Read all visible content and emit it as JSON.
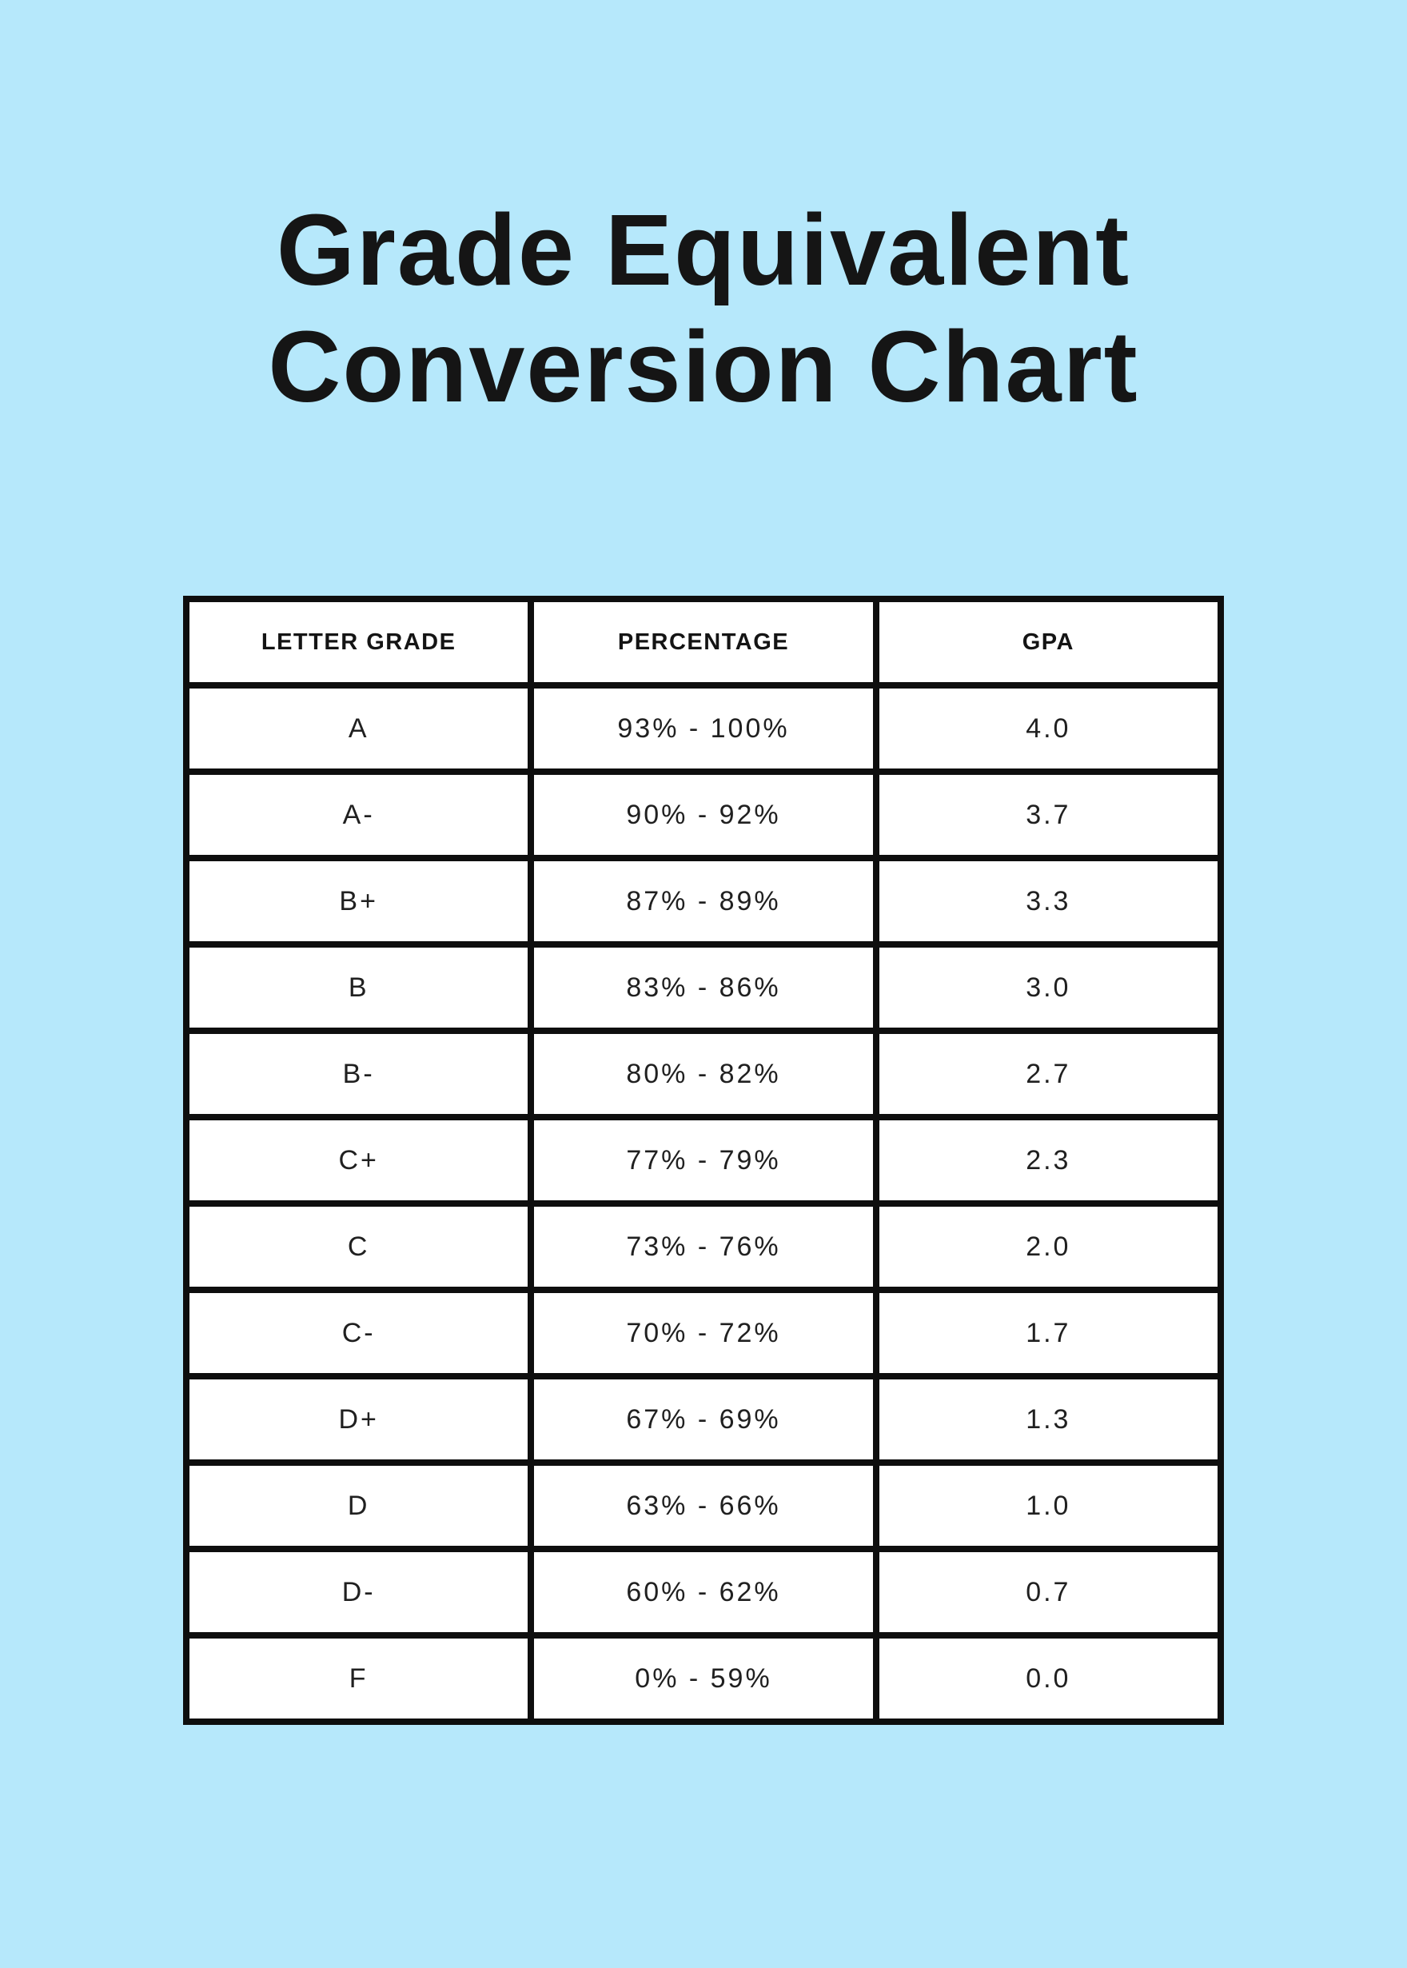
{
  "colors": {
    "background": "#B6E8FB",
    "table_border": "#0e0e0e",
    "cell_background": "#ffffff",
    "text": "#151515"
  },
  "title": {
    "full": "Grade Equivalent Conversion Chart",
    "line1": "Grade Equivalent",
    "line2": "Conversion Chart"
  },
  "chart_data": {
    "type": "table",
    "title": "Grade Equivalent Conversion Chart",
    "columns": [
      "LETTER GRADE",
      "PERCENTAGE",
      "GPA"
    ],
    "rows": [
      [
        "A",
        "93% - 100%",
        "4.0"
      ],
      [
        "A-",
        "90% - 92%",
        "3.7"
      ],
      [
        "B+",
        "87% - 89%",
        "3.3"
      ],
      [
        "B",
        "83% - 86%",
        "3.0"
      ],
      [
        "B-",
        "80% - 82%",
        "2.7"
      ],
      [
        "C+",
        "77% - 79%",
        "2.3"
      ],
      [
        "C",
        "73% - 76%",
        "2.0"
      ],
      [
        "C-",
        "70% - 72%",
        "1.7"
      ],
      [
        "D+",
        "67% - 69%",
        "1.3"
      ],
      [
        "D",
        "63% - 66%",
        "1.0"
      ],
      [
        "D-",
        "60% - 62%",
        "0.7"
      ],
      [
        "F",
        "0% - 59%",
        "0.0"
      ]
    ]
  }
}
